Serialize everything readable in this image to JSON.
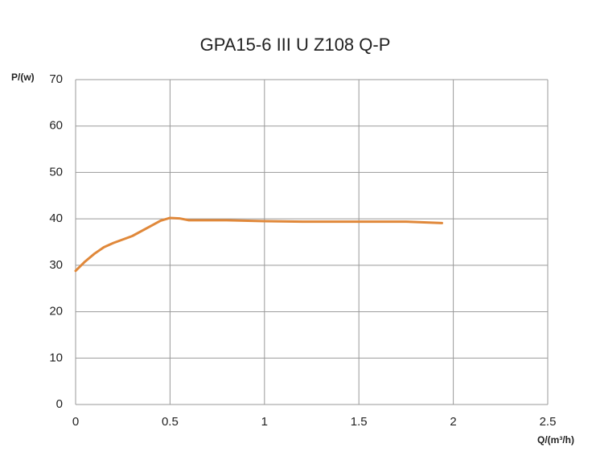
{
  "chart_data": {
    "type": "line",
    "title": "GPA15-6 III U Z108 Q-P",
    "x_label": "Q/(m³/h)",
    "y_label": "P/(w)",
    "x": [
      0,
      0.05,
      0.1,
      0.15,
      0.2,
      0.3,
      0.4,
      0.45,
      0.5,
      0.55,
      0.6,
      0.8,
      1.0,
      1.2,
      1.5,
      1.75,
      1.94
    ],
    "series": [
      {
        "name": "Q-P",
        "color": "#e0883a",
        "values": [
          28.8,
          30.8,
          32.5,
          33.9,
          34.8,
          36.3,
          38.5,
          39.6,
          40.2,
          40.1,
          39.7,
          39.7,
          39.5,
          39.4,
          39.4,
          39.4,
          39.1
        ]
      }
    ],
    "xlim": [
      0,
      2.5
    ],
    "xticks": [
      0,
      0.5,
      1,
      1.5,
      2,
      2.5
    ],
    "ylim": [
      0,
      70
    ],
    "yticks": [
      0,
      10,
      20,
      30,
      40,
      50,
      60,
      70
    ],
    "grid": true
  }
}
